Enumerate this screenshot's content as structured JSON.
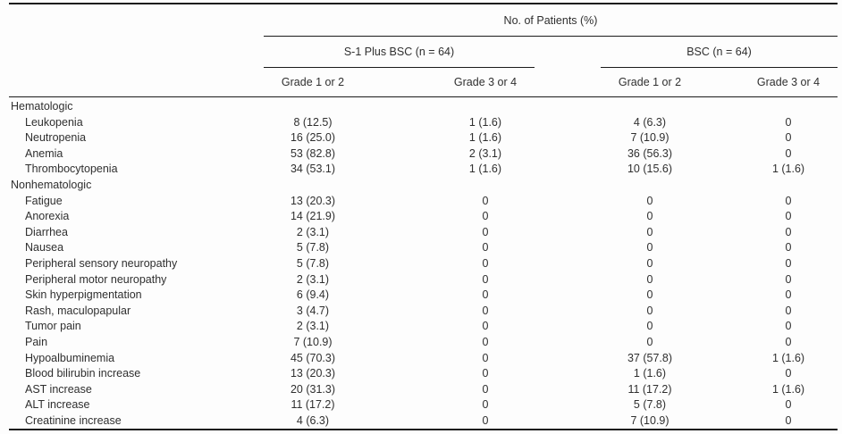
{
  "table": {
    "spanner_top": "No. of Patients (%)",
    "groups": [
      {
        "label": "S-1 Plus BSC (n = 64)"
      },
      {
        "label": "BSC (n = 64)"
      }
    ],
    "grade_headers": [
      "Grade 1 or 2",
      "Grade 3 or 4",
      "Grade 1 or 2",
      "Grade 3 or 4"
    ],
    "rows": [
      {
        "label": "Hematologic",
        "section": true,
        "values": [
          "",
          "",
          "",
          ""
        ]
      },
      {
        "label": "Leukopenia",
        "section": false,
        "values": [
          "8 (12.5)",
          "1 (1.6)",
          "4 (6.3)",
          "0"
        ]
      },
      {
        "label": "Neutropenia",
        "section": false,
        "values": [
          "16 (25.0)",
          "1 (1.6)",
          "7 (10.9)",
          "0"
        ]
      },
      {
        "label": "Anemia",
        "section": false,
        "values": [
          "53 (82.8)",
          "2 (3.1)",
          "36 (56.3)",
          "0"
        ]
      },
      {
        "label": "Thrombocytopenia",
        "section": false,
        "values": [
          "34 (53.1)",
          "1 (1.6)",
          "10 (15.6)",
          "1 (1.6)"
        ]
      },
      {
        "label": "Nonhematologic",
        "section": true,
        "values": [
          "",
          "",
          "",
          ""
        ]
      },
      {
        "label": "Fatigue",
        "section": false,
        "values": [
          "13 (20.3)",
          "0",
          "0",
          "0"
        ]
      },
      {
        "label": "Anorexia",
        "section": false,
        "values": [
          "14 (21.9)",
          "0",
          "0",
          "0"
        ]
      },
      {
        "label": "Diarrhea",
        "section": false,
        "values": [
          "2 (3.1)",
          "0",
          "0",
          "0"
        ]
      },
      {
        "label": "Nausea",
        "section": false,
        "values": [
          "5 (7.8)",
          "0",
          "0",
          "0"
        ]
      },
      {
        "label": "Peripheral sensory neuropathy",
        "section": false,
        "values": [
          "5 (7.8)",
          "0",
          "0",
          "0"
        ]
      },
      {
        "label": "Peripheral motor neuropathy",
        "section": false,
        "values": [
          "2 (3.1)",
          "0",
          "0",
          "0"
        ]
      },
      {
        "label": "Skin hyperpigmentation",
        "section": false,
        "values": [
          "6 (9.4)",
          "0",
          "0",
          "0"
        ]
      },
      {
        "label": "Rash, maculopapular",
        "section": false,
        "values": [
          "3 (4.7)",
          "0",
          "0",
          "0"
        ]
      },
      {
        "label": "Tumor pain",
        "section": false,
        "values": [
          "2 (3.1)",
          "0",
          "0",
          "0"
        ]
      },
      {
        "label": "Pain",
        "section": false,
        "values": [
          "7 (10.9)",
          "0",
          "0",
          "0"
        ]
      },
      {
        "label": "Hypoalbuminemia",
        "section": false,
        "values": [
          "45 (70.3)",
          "0",
          "37 (57.8)",
          "1 (1.6)"
        ]
      },
      {
        "label": "Blood bilirubin increase",
        "section": false,
        "values": [
          "13 (20.3)",
          "0",
          "1 (1.6)",
          "0"
        ]
      },
      {
        "label": "AST increase",
        "section": false,
        "values": [
          "20 (31.3)",
          "0",
          "11 (17.2)",
          "1 (1.6)"
        ]
      },
      {
        "label": "ALT increase",
        "section": false,
        "values": [
          "11 (17.2)",
          "0",
          "5 (7.8)",
          "0"
        ]
      },
      {
        "label": "Creatinine increase",
        "section": false,
        "values": [
          "4 (6.3)",
          "0",
          "7 (10.9)",
          "0"
        ]
      }
    ]
  },
  "colors": {
    "text": "#2f2f2f",
    "rule": "#1b1b1b",
    "background": "#fdfdfd"
  }
}
